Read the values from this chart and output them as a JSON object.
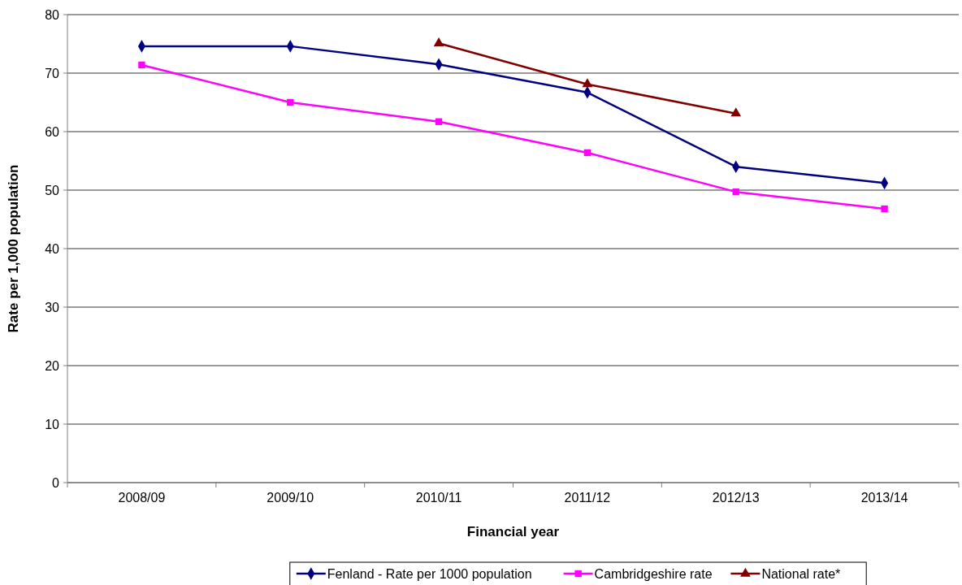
{
  "chart_data": {
    "type": "line",
    "xlabel": "Financial year",
    "ylabel": "Rate per 1,000 population",
    "categories": [
      "2008/09",
      "2009/10",
      "2010/11",
      "2011/12",
      "2012/13",
      "2013/14"
    ],
    "series": [
      {
        "name": "Fenland - Rate per 1000 population",
        "color": "#000080",
        "marker": "diamond",
        "values": [
          74.6,
          74.6,
          71.5,
          66.7,
          54.0,
          51.2
        ]
      },
      {
        "name": "Cambridgeshire rate",
        "color": "#ff00ff",
        "marker": "square",
        "values": [
          71.4,
          65.0,
          61.7,
          56.4,
          49.7,
          46.8
        ]
      },
      {
        "name": "National rate*",
        "color": "#800000",
        "marker": "triangle",
        "values": [
          null,
          null,
          75.1,
          68.1,
          63.1,
          null
        ]
      }
    ],
    "ylim": [
      0,
      80
    ],
    "yticks": [
      0,
      10,
      20,
      30,
      40,
      50,
      60,
      70,
      80
    ],
    "grid": "y",
    "legend": "bottom"
  }
}
